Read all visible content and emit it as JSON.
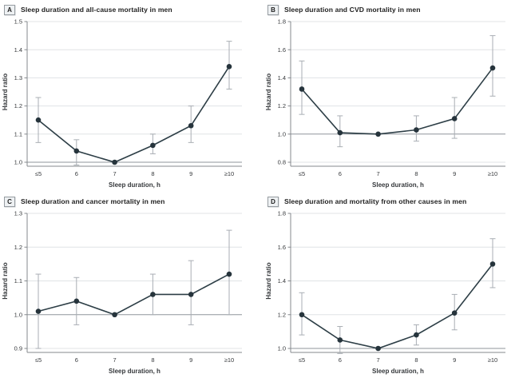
{
  "figure": {
    "ylabel": "Hazard ratio",
    "xlabel": "Sleep duration, h"
  },
  "colors": {
    "line": "#2d3e46",
    "marker": "#26343c",
    "error_bar": "#a9aeb4",
    "gridline": "#e0e3e6",
    "reference_line": "#8f969b",
    "axis": "#85898d",
    "tick_text": "#36393c",
    "title_text": "#1f1f1f",
    "label_box_bg": "#eef1f3",
    "label_box_border": "#969ca1"
  },
  "chart_data": [
    {
      "panel": "A",
      "title": "Sleep duration and all-cause mortality in men",
      "type": "line",
      "xlabel": "Sleep duration, h",
      "ylabel": "Hazard ratio",
      "categories": [
        "≤5",
        "6",
        "7",
        "8",
        "9",
        "≥10"
      ],
      "values": [
        1.15,
        1.04,
        1.0,
        1.06,
        1.13,
        1.34
      ],
      "ci_low": [
        1.07,
        0.99,
        null,
        1.03,
        1.07,
        1.26
      ],
      "ci_high": [
        1.23,
        1.08,
        null,
        1.1,
        1.2,
        1.43
      ],
      "ylim": [
        1.0,
        1.5
      ],
      "yticks": [
        1.0,
        1.1,
        1.2,
        1.3,
        1.4,
        1.5
      ],
      "reference_line": 1.0,
      "grid": true,
      "legend": "none"
    },
    {
      "panel": "B",
      "title": "Sleep duration and CVD mortality in men",
      "type": "line",
      "xlabel": "Sleep duration, h",
      "ylabel": "Hazard ratio",
      "categories": [
        "≤5",
        "6",
        "7",
        "8",
        "9",
        "≥10"
      ],
      "values": [
        1.32,
        1.01,
        1.0,
        1.03,
        1.11,
        1.47
      ],
      "ci_low": [
        1.14,
        0.91,
        null,
        0.95,
        0.97,
        1.27
      ],
      "ci_high": [
        1.52,
        1.13,
        null,
        1.13,
        1.26,
        1.7
      ],
      "ylim": [
        0.8,
        1.8
      ],
      "yticks": [
        0.8,
        1.0,
        1.2,
        1.4,
        1.6,
        1.8
      ],
      "reference_line": 1.0,
      "grid": true,
      "legend": "none"
    },
    {
      "panel": "C",
      "title": "Sleep duration and cancer mortality in men",
      "type": "line",
      "xlabel": "Sleep duration, h",
      "ylabel": "Hazard ratio",
      "categories": [
        "≤5",
        "6",
        "7",
        "8",
        "9",
        "≥10"
      ],
      "values": [
        1.01,
        1.04,
        1.0,
        1.06,
        1.06,
        1.12
      ],
      "ci_low": [
        0.9,
        0.97,
        null,
        1.0,
        0.97,
        1.0
      ],
      "ci_high": [
        1.12,
        1.11,
        null,
        1.12,
        1.16,
        1.25
      ],
      "ylim": [
        0.9,
        1.3
      ],
      "yticks": [
        0.9,
        1.0,
        1.1,
        1.2,
        1.3
      ],
      "reference_line": 1.0,
      "grid": true,
      "legend": "none"
    },
    {
      "panel": "D",
      "title": "Sleep duration and mortality from other causes in men",
      "type": "line",
      "xlabel": "Sleep duration, h",
      "ylabel": "Hazard ratio",
      "categories": [
        "≤5",
        "6",
        "7",
        "8",
        "9",
        "≥10"
      ],
      "values": [
        1.2,
        1.05,
        1.0,
        1.08,
        1.21,
        1.5
      ],
      "ci_low": [
        1.08,
        0.97,
        null,
        1.02,
        1.11,
        1.36
      ],
      "ci_high": [
        1.33,
        1.13,
        null,
        1.14,
        1.32,
        1.65
      ],
      "ylim": [
        1.0,
        1.8
      ],
      "yticks": [
        1.0,
        1.2,
        1.4,
        1.6,
        1.8
      ],
      "reference_line": 1.0,
      "grid": true,
      "legend": "none"
    }
  ]
}
